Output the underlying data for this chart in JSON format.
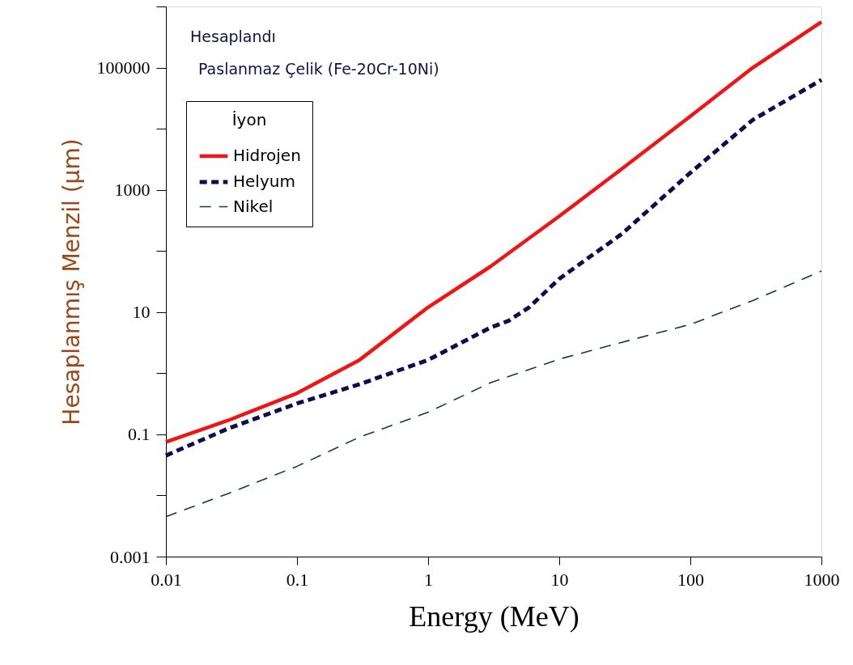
{
  "chart_data": {
    "type": "line",
    "xlabel": "Energy (MeV)",
    "ylabel": "Hesaplanmış Menzil (μm)",
    "legend_title": "İyon",
    "annotations": [
      "Hesaplandı",
      "Paslanmaz Çelik (Fe-20Cr-10Ni)"
    ],
    "x": [
      0.01,
      0.03,
      0.1,
      0.3,
      1,
      3,
      10,
      30,
      100,
      300,
      1000
    ],
    "series": [
      {
        "name": "Hidrojen",
        "color": "#f01414",
        "line_style": "solid",
        "values": [
          0.075,
          0.17,
          0.47,
          1.65,
          12,
          56,
          370,
          2200,
          16000,
          100000,
          560000
        ]
      },
      {
        "name": "Helyum",
        "color": "#0c0c52",
        "line_style": "dotted",
        "x": [
          0.01,
          0.03,
          0.1,
          0.3,
          1,
          3,
          4.1,
          5.9,
          10,
          30,
          100,
          300,
          1000
        ],
        "values": [
          0.045,
          0.125,
          0.32,
          0.66,
          1.65,
          5.6,
          7.2,
          12,
          35,
          190,
          1900,
          14000,
          63000
        ]
      },
      {
        "name": "Nikel",
        "color": "#1c3a2c",
        "line_style": "dashed",
        "values": [
          0.0045,
          0.0108,
          0.03,
          0.09,
          0.23,
          0.7,
          1.7,
          3.2,
          6.3,
          15.5,
          47
        ]
      }
    ],
    "log": "xy",
    "grid": false,
    "legend": "top left",
    "xlim": [
      0.01,
      1000
    ],
    "xticks": [
      0.01,
      0.1,
      1,
      10,
      100,
      1000
    ],
    "ylim": [
      0.001,
      1000000
    ],
    "yticks": [
      0.001,
      {
        "value": 0.01,
        "label": null
      },
      0.1,
      {
        "value": 1,
        "label": null
      },
      10,
      {
        "value": 100,
        "label": null
      },
      1000,
      {
        "value": 10000,
        "label": null
      },
      100000,
      {
        "value": 1000000,
        "label": null
      }
    ]
  }
}
